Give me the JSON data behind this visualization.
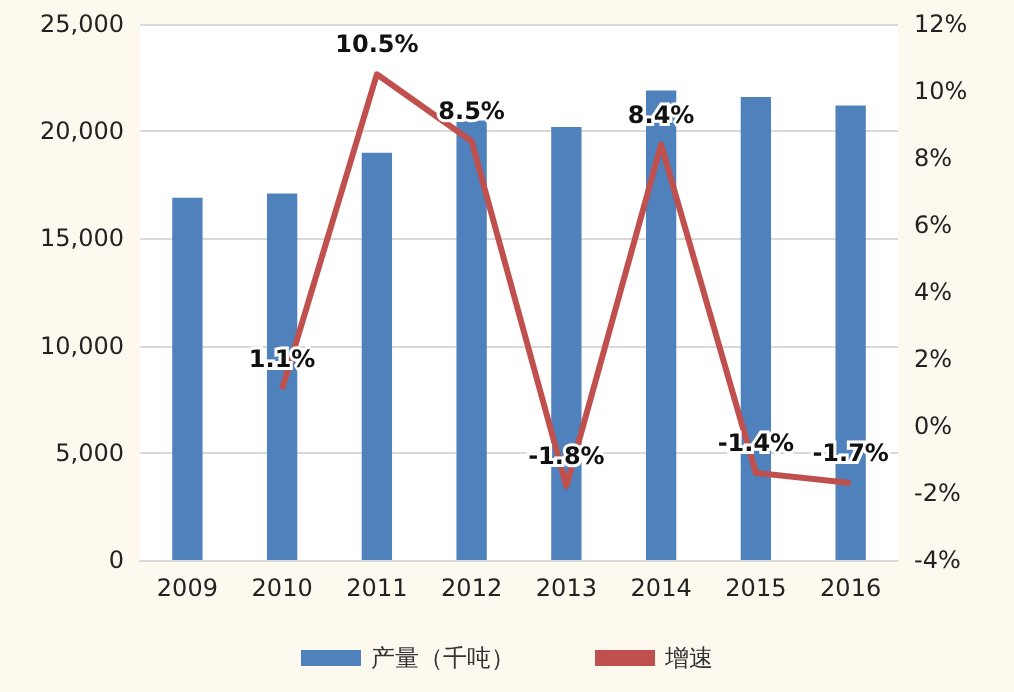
{
  "chart_data": {
    "type": "bar",
    "categories": [
      "2009",
      "2010",
      "2011",
      "2012",
      "2013",
      "2014",
      "2015",
      "2016"
    ],
    "series": [
      {
        "name": "产量（千吨）",
        "color": "#4f81bd",
        "values": [
          16900,
          17100,
          19000,
          20500,
          20200,
          21900,
          21600,
          21200
        ]
      },
      {
        "name": "增速",
        "type": "line",
        "axis": "y2",
        "color": "#c0504d",
        "marker": "none",
        "values": [
          null,
          1.1,
          10.5,
          8.5,
          -1.8,
          8.4,
          -1.4,
          -1.7
        ],
        "value_labels": [
          null,
          "1.1%",
          "10.5%",
          "8.5%",
          "-1.8%",
          "8.4%",
          "-1.4%",
          "-1.7%"
        ]
      }
    ],
    "ylim": [
      0,
      25000
    ],
    "yticks": [
      {
        "value": 0,
        "label": "0"
      },
      {
        "value": 5000,
        "label": "5,000"
      },
      {
        "value": 10000,
        "label": "10,000"
      },
      {
        "value": 15000,
        "label": "15,000"
      },
      {
        "value": 20000,
        "label": "20,000"
      },
      {
        "value": 25000,
        "label": "25,000"
      }
    ],
    "y2lim": [
      -4,
      12
    ],
    "y2ticks": [
      {
        "value": -4,
        "label": "-4%"
      },
      {
        "value": -2,
        "label": "-2%"
      },
      {
        "value": 0,
        "label": "0%"
      },
      {
        "value": 2,
        "label": "2%"
      },
      {
        "value": 4,
        "label": "4%"
      },
      {
        "value": 6,
        "label": "6%"
      },
      {
        "value": 8,
        "label": "8%"
      },
      {
        "value": 10,
        "label": "10%"
      },
      {
        "value": 12,
        "label": "12%"
      }
    ],
    "grid": "y",
    "legend": "bottom"
  }
}
